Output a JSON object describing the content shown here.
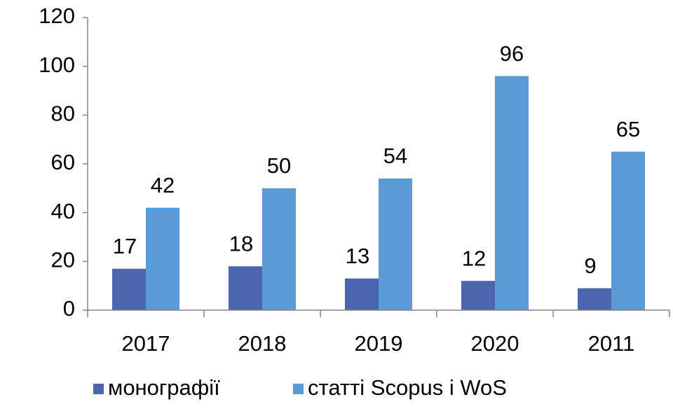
{
  "chart_data": {
    "type": "bar",
    "categories": [
      "2017",
      "2018",
      "2019",
      "2020",
      "2011"
    ],
    "series": [
      {
        "name": "монографії",
        "color": "#4a66ac",
        "values": [
          17,
          18,
          13,
          12,
          9
        ]
      },
      {
        "name": "статті Scopus і WoS",
        "color": "#5b9bd5",
        "values": [
          42,
          50,
          54,
          96,
          65
        ]
      }
    ],
    "ylim": [
      0,
      120
    ],
    "yticks": [
      0,
      20,
      40,
      60,
      80,
      100,
      120
    ],
    "grid": false,
    "legend": "bottom"
  }
}
